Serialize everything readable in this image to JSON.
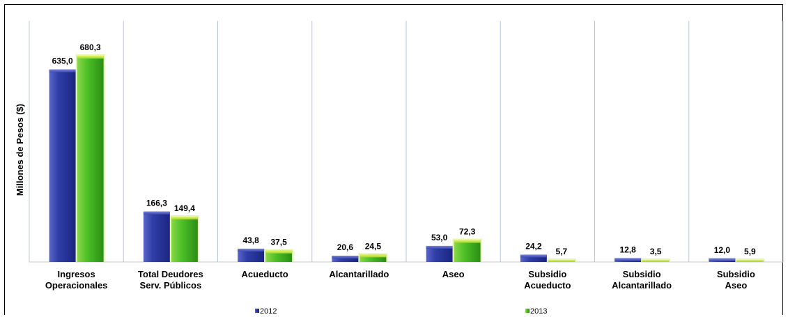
{
  "chart_data": {
    "type": "bar",
    "title": "",
    "xlabel": "",
    "ylabel": "Millones de Pesos ($)",
    "ylim": [
      0,
      700
    ],
    "grid": "vertical separators between categories",
    "legend_position": "bottom",
    "categories": [
      [
        "Ingresos",
        "Operacionales"
      ],
      [
        "Total Deudores",
        "Serv. Públicos"
      ],
      [
        "Acueducto"
      ],
      [
        "Alcantarillado"
      ],
      [
        "Aseo"
      ],
      [
        "Subsidio",
        "Acueducto"
      ],
      [
        "Subsidio",
        "Alcantarillado"
      ],
      [
        "Subsidio",
        "Aseo"
      ]
    ],
    "series": [
      {
        "name": "2012",
        "color": "#2b3a9c",
        "values": [
          635.0,
          166.3,
          43.8,
          20.6,
          53.0,
          24.2,
          12.8,
          12.0
        ],
        "labels": [
          "635,0",
          "166,3",
          "43,8",
          "20,6",
          "53,0",
          "24,2",
          "12,8",
          "12,0"
        ]
      },
      {
        "name": "2013",
        "color": "#3fae1f",
        "values": [
          680.3,
          149.4,
          37.5,
          24.5,
          72.3,
          5.7,
          3.5,
          5.9
        ],
        "labels": [
          "680,3",
          "149,4",
          "37,5",
          "24,5",
          "72,3",
          "5,7",
          "3,5",
          "5,9"
        ]
      }
    ]
  }
}
